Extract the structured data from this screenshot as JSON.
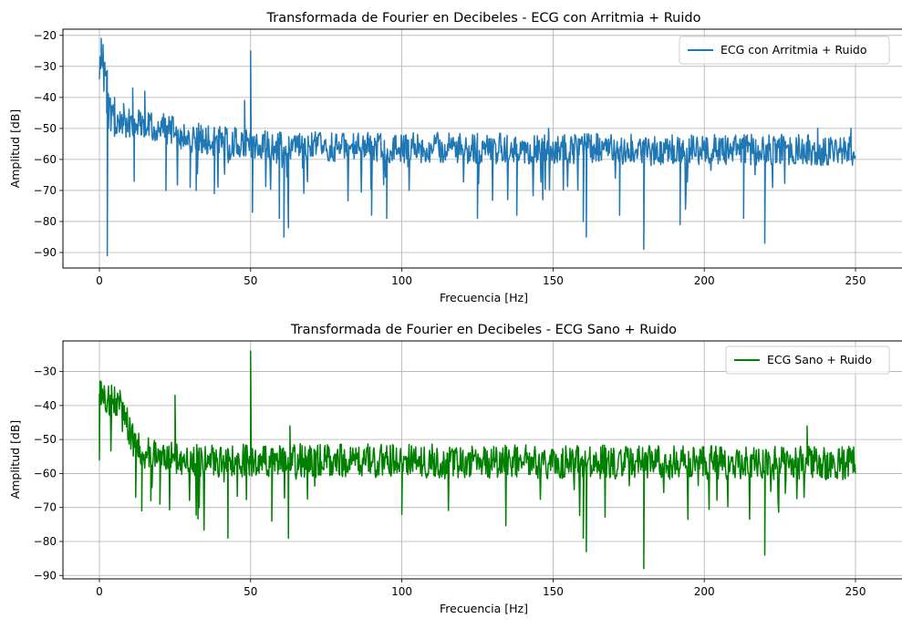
{
  "chart_data": [
    {
      "type": "line",
      "title": "Transformada de Fourier en Decibeles - ECG con Arritmia + Ruido",
      "xlabel": "Frecuencia [Hz]",
      "ylabel": "Amplitud [dB]",
      "xlim": [
        -12.5,
        262.5
      ],
      "ylim": [
        -95,
        -18
      ],
      "xticks": [
        0,
        50,
        100,
        150,
        200,
        250
      ],
      "yticks": [
        -90,
        -80,
        -70,
        -60,
        -50,
        -40,
        -30,
        -20
      ],
      "xtick_labels": [
        "0",
        "50",
        "100",
        "150",
        "200",
        "250"
      ],
      "ytick_labels": [
        "−90",
        "−80",
        "−70",
        "−60",
        "−50",
        "−40",
        "−30",
        "−20"
      ],
      "grid": true,
      "legend_position": "top-right",
      "series": [
        {
          "name": "ECG con Arritmia + Ruido",
          "color": "#1f77b4",
          "x_range": [
            0,
            250
          ],
          "profile": [
            [
              0,
              -30
            ],
            [
              2,
              -30
            ],
            [
              5,
              -48
            ],
            [
              15,
              -48
            ],
            [
              30,
              -53
            ],
            [
              60,
              -56
            ],
            [
              250,
              -57
            ]
          ],
          "noise_amplitude": 5,
          "features": [
            {
              "x": 0.0,
              "y": -34
            },
            {
              "x": 0.3,
              "y": -29
            },
            {
              "x": 0.6,
              "y": -21
            },
            {
              "x": 0.9,
              "y": -27
            },
            {
              "x": 1.2,
              "y": -23
            },
            {
              "x": 1.5,
              "y": -38
            },
            {
              "x": 1.8,
              "y": -30
            },
            {
              "x": 2.4,
              "y": -45
            },
            {
              "x": 2.6,
              "y": -91
            },
            {
              "x": 3.0,
              "y": -50
            },
            {
              "x": 5.0,
              "y": -40
            },
            {
              "x": 8.0,
              "y": -42
            },
            {
              "x": 11.0,
              "y": -37
            },
            {
              "x": 11.5,
              "y": -67
            },
            {
              "x": 15.0,
              "y": -38
            },
            {
              "x": 22.0,
              "y": -70
            },
            {
              "x": 30.0,
              "y": -69
            },
            {
              "x": 32.0,
              "y": -70
            },
            {
              "x": 38.0,
              "y": -71
            },
            {
              "x": 48.0,
              "y": -41
            },
            {
              "x": 49.7,
              "y": -55
            },
            {
              "x": 50.0,
              "y": -25
            },
            {
              "x": 50.3,
              "y": -55
            },
            {
              "x": 50.6,
              "y": -77
            },
            {
              "x": 59.5,
              "y": -79
            },
            {
              "x": 61.0,
              "y": -85
            },
            {
              "x": 62.5,
              "y": -82
            },
            {
              "x": 90.0,
              "y": -78
            },
            {
              "x": 95.0,
              "y": -79
            },
            {
              "x": 125.0,
              "y": -79
            },
            {
              "x": 138.0,
              "y": -78
            },
            {
              "x": 148.5,
              "y": -50
            },
            {
              "x": 160.0,
              "y": -80
            },
            {
              "x": 161.0,
              "y": -85
            },
            {
              "x": 172.0,
              "y": -78
            },
            {
              "x": 180.0,
              "y": -89
            },
            {
              "x": 192.0,
              "y": -81
            },
            {
              "x": 213.0,
              "y": -79
            },
            {
              "x": 220.0,
              "y": -87
            },
            {
              "x": 237.5,
              "y": -50
            },
            {
              "x": 248.5,
              "y": -50
            }
          ]
        }
      ]
    },
    {
      "type": "line",
      "title": "Transformada de Fourier en Decibeles - ECG Sano + Ruido",
      "xlabel": "Frecuencia [Hz]",
      "ylabel": "Amplitud [dB]",
      "xlim": [
        -12.5,
        262.5
      ],
      "ylim": [
        -91,
        -21
      ],
      "xticks": [
        0,
        50,
        100,
        150,
        200,
        250
      ],
      "yticks": [
        -90,
        -80,
        -70,
        -60,
        -50,
        -40,
        -30
      ],
      "xtick_labels": [
        "0",
        "50",
        "100",
        "150",
        "200",
        "250"
      ],
      "ytick_labels": [
        "−90",
        "−80",
        "−70",
        "−60",
        "−50",
        "−40",
        "−30"
      ],
      "grid": true,
      "legend_position": "top-right",
      "series": [
        {
          "name": "ECG Sano + Ruido",
          "color": "#008000",
          "x_range": [
            0,
            250
          ],
          "profile": [
            [
              0,
              -37
            ],
            [
              8,
              -41
            ],
            [
              11,
              -50
            ],
            [
              15,
              -54
            ],
            [
              30,
              -56
            ],
            [
              250,
              -57
            ]
          ],
          "noise_amplitude": 5,
          "features": [
            {
              "x": 0.0,
              "y": -56
            },
            {
              "x": 0.3,
              "y": -36
            },
            {
              "x": 0.6,
              "y": -33
            },
            {
              "x": 4.0,
              "y": -34
            },
            {
              "x": 12.0,
              "y": -67
            },
            {
              "x": 14.0,
              "y": -71
            },
            {
              "x": 17.0,
              "y": -68
            },
            {
              "x": 20.0,
              "y": -69
            },
            {
              "x": 25.0,
              "y": -37
            },
            {
              "x": 25.5,
              "y": -60
            },
            {
              "x": 33.0,
              "y": -70
            },
            {
              "x": 42.5,
              "y": -79
            },
            {
              "x": 49.6,
              "y": -55
            },
            {
              "x": 50.0,
              "y": -24
            },
            {
              "x": 50.4,
              "y": -56
            },
            {
              "x": 57.0,
              "y": -74
            },
            {
              "x": 62.5,
              "y": -79
            },
            {
              "x": 63.0,
              "y": -46
            },
            {
              "x": 100.0,
              "y": -72
            },
            {
              "x": 160.0,
              "y": -79
            },
            {
              "x": 161.0,
              "y": -83
            },
            {
              "x": 180.0,
              "y": -88
            },
            {
              "x": 220.0,
              "y": -84
            },
            {
              "x": 234.0,
              "y": -46
            }
          ]
        }
      ]
    }
  ]
}
